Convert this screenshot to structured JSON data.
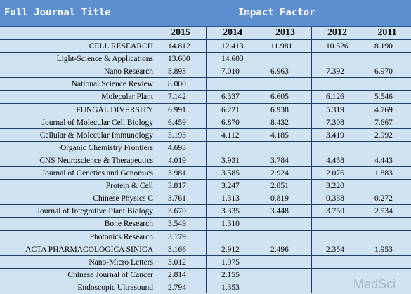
{
  "header": {
    "title_col": "Full Journal Title",
    "group": "Impact Factor",
    "years": [
      "2015",
      "2014",
      "2013",
      "2012",
      "2011"
    ]
  },
  "rows": [
    {
      "title": "CELL RESEARCH",
      "v": [
        "14.812",
        "12.413",
        "11.981",
        "10.526",
        "8.190"
      ]
    },
    {
      "title": "Light-Science & Applications",
      "v": [
        "13.600",
        "14.603",
        "",
        "",
        ""
      ]
    },
    {
      "title": "Nano Research",
      "v": [
        "8.893",
        "7.010",
        "6.963",
        "7.392",
        "6.970"
      ]
    },
    {
      "title": "National Science Review",
      "v": [
        "8.000",
        "",
        "",
        "",
        ""
      ]
    },
    {
      "title": "Molecular Plant",
      "v": [
        "7.142",
        "6.337",
        "6.605",
        "6.126",
        "5.546"
      ]
    },
    {
      "title": "FUNGAL DIVERSITY",
      "v": [
        "6.991",
        "6.221",
        "6.938",
        "5.319",
        "4.769"
      ]
    },
    {
      "title": "Journal of Molecular Cell Biology",
      "v": [
        "6.459",
        "6.870",
        "8.432",
        "7.308",
        "7.667"
      ]
    },
    {
      "title": "Cellular & Molecular Immunology",
      "v": [
        "5.193",
        "4.112",
        "4.185",
        "3.419",
        "2.992"
      ]
    },
    {
      "title": "Organic Chemistry Frontiers",
      "v": [
        "4.693",
        "",
        "",
        "",
        ""
      ]
    },
    {
      "title": "CNS Neuroscience & Therapeutics",
      "v": [
        "4.019",
        "3.931",
        "3.784",
        "4.458",
        "4.443"
      ]
    },
    {
      "title": "Journal of Genetics and Genomics",
      "v": [
        "3.981",
        "3.585",
        "2.924",
        "2.076",
        "1.883"
      ]
    },
    {
      "title": "Protein & Cell",
      "v": [
        "3.817",
        "3.247",
        "2.851",
        "3.220",
        ""
      ]
    },
    {
      "title": "Chinese Physics C",
      "v": [
        "3.761",
        "1.313",
        "0.819",
        "0.338",
        "0.272"
      ]
    },
    {
      "title": "Journal of Integrative Plant Biology",
      "v": [
        "3.670",
        "3.335",
        "3.448",
        "3.750",
        "2.534"
      ]
    },
    {
      "title": "Bone Research",
      "v": [
        "3.549",
        "1.310",
        "",
        "",
        ""
      ]
    },
    {
      "title": "Photonics Research",
      "v": [
        "3.179",
        "",
        "",
        "",
        ""
      ]
    },
    {
      "title": "ACTA PHARMACOLOGICA SINICA",
      "v": [
        "3.166",
        "2.912",
        "2.496",
        "2.354",
        "1.953"
      ]
    },
    {
      "title": "Nano-Micro Letters",
      "v": [
        "3.012",
        "1.975",
        "",
        "",
        ""
      ]
    },
    {
      "title": "Chinese Journal of Cancer",
      "v": [
        "2.814",
        "2.155",
        "",
        "",
        ""
      ]
    },
    {
      "title": "Endoscopic Ultrasound",
      "v": [
        "2.794",
        "1.353",
        "",
        "",
        ""
      ]
    }
  ],
  "watermark": "MedSci"
}
